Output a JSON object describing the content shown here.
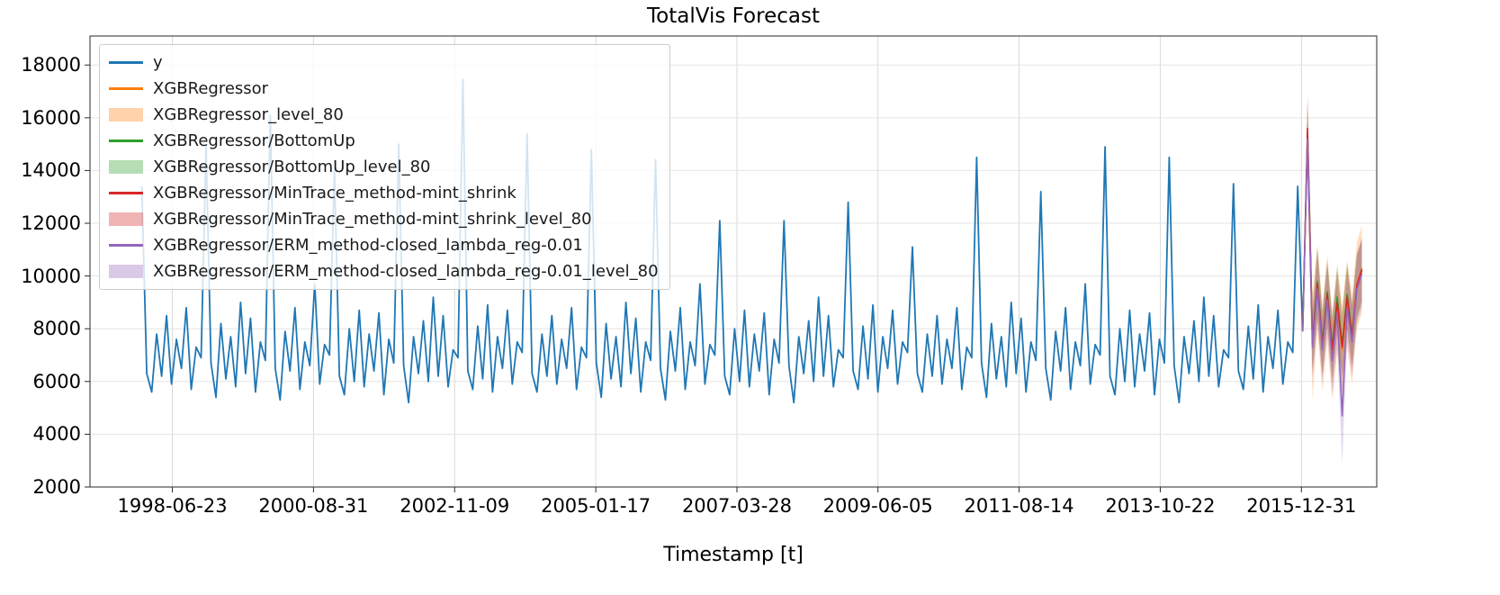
{
  "chart_data": {
    "type": "line",
    "title": "TotalVis Forecast",
    "xlabel": "Timestamp [t]",
    "ylabel": "",
    "grid": true,
    "legend_position": "upper left",
    "xlim": [
      -42,
      1000
    ],
    "ylim": [
      2000,
      19100
    ],
    "yticks": [
      2000,
      4000,
      6000,
      8000,
      10000,
      12000,
      14000,
      16000,
      18000
    ],
    "xticks": [
      {
        "label": "1998-06-23",
        "x": 24.7
      },
      {
        "label": "2000-08-31",
        "x": 139.0
      },
      {
        "label": "2002-11-09",
        "x": 253.3
      },
      {
        "label": "2005-01-17",
        "x": 367.6
      },
      {
        "label": "2007-03-28",
        "x": 481.9
      },
      {
        "label": "2009-06-05",
        "x": 596.1
      },
      {
        "label": "2011-08-14",
        "x": 710.4
      },
      {
        "label": "2013-10-22",
        "x": 824.7
      },
      {
        "label": "2015-12-31",
        "x": 939.0
      }
    ],
    "x_unit": "weeks since 1998-01-01",
    "series": [
      {
        "name": "y",
        "color": "#1f77b4",
        "x_start": 0,
        "x_step": 4,
        "values": [
          13400,
          6300,
          5600,
          7800,
          6200,
          8500,
          5900,
          7600,
          6500,
          8800,
          5700,
          7300,
          6900,
          14900,
          6700,
          5400,
          8200,
          6100,
          7700,
          5800,
          9000,
          6300,
          8400,
          5600,
          7500,
          6800,
          16100,
          6500,
          5300,
          7900,
          6400,
          8800,
          5700,
          7500,
          6600,
          9700,
          5900,
          7400,
          7000,
          14000,
          6200,
          5500,
          8000,
          6000,
          8700,
          5800,
          7800,
          6400,
          8600,
          5500,
          7600,
          6700,
          15000,
          6600,
          5200,
          7700,
          6300,
          8300,
          6000,
          9200,
          6200,
          8500,
          5800,
          7200,
          6900,
          17450,
          6400,
          5700,
          8100,
          6100,
          8900,
          5600,
          7700,
          6500,
          8700,
          5900,
          7500,
          7100,
          15400,
          6300,
          5600,
          7800,
          6200,
          8500,
          5900,
          7600,
          6500,
          8800,
          5700,
          7300,
          6900,
          14800,
          6700,
          5400,
          8200,
          6100,
          7700,
          5800,
          9000,
          6300,
          8400,
          5600,
          7500,
          6800,
          14400,
          6500,
          5300,
          7900,
          6400,
          8800,
          5700,
          7500,
          6600,
          9700,
          5900,
          7400,
          7000,
          12100,
          6200,
          5500,
          8000,
          6000,
          8700,
          5800,
          7800,
          6400,
          8600,
          5500,
          7600,
          6700,
          12100,
          6600,
          5200,
          7700,
          6300,
          8300,
          6000,
          9200,
          6200,
          8500,
          5800,
          7200,
          6900,
          12800,
          6400,
          5700,
          8100,
          6100,
          8900,
          5600,
          7700,
          6500,
          8700,
          5900,
          7500,
          7100,
          11100,
          6300,
          5600,
          7800,
          6200,
          8500,
          5900,
          7600,
          6500,
          8800,
          5700,
          7300,
          6900,
          14500,
          6700,
          5400,
          8200,
          6100,
          7700,
          5800,
          9000,
          6300,
          8400,
          5600,
          7500,
          6800,
          13200,
          6500,
          5300,
          7900,
          6400,
          8800,
          5700,
          7500,
          6600,
          9700,
          5900,
          7400,
          7000,
          14900,
          6200,
          5500,
          8000,
          6000,
          8700,
          5800,
          7800,
          6400,
          8600,
          5500,
          7600,
          6700,
          14500,
          6600,
          5200,
          7700,
          6300,
          8300,
          6000,
          9200,
          6200,
          8500,
          5800,
          7200,
          6900,
          13500,
          6400,
          5700,
          8100,
          6100,
          8900,
          5600,
          7700,
          6500,
          8700,
          5900,
          7500,
          7100,
          13400,
          7900
        ]
      },
      {
        "name": "XGBRegressor",
        "color": "#ff7f0e",
        "x_start": 940,
        "x_step": 4,
        "values": [
          7900,
          15300,
          7400,
          9600,
          7300,
          9200,
          7000,
          8800,
          7200,
          9000,
          7600,
          9700,
          10300
        ],
        "band": {
          "name": "XGBRegressor_level_80",
          "alpha": 0.25,
          "lower": [
            7900,
            13800,
            5300,
            7900,
            5600,
            7500,
            5300,
            7100,
            5500,
            7300,
            5900,
            8000,
            8600
          ],
          "upper": [
            7900,
            16800,
            9400,
            11200,
            9000,
            10800,
            8700,
            10400,
            8900,
            10600,
            9300,
            11300,
            11900
          ]
        }
      },
      {
        "name": "XGBRegressor/BottomUp",
        "color": "#2ca02c",
        "x_start": 940,
        "x_step": 4,
        "values": [
          7900,
          15400,
          7600,
          9800,
          7500,
          9400,
          7300,
          9200,
          7400,
          9300,
          7800,
          9600,
          10200
        ],
        "band": {
          "name": "XGBRegressor/BottomUp_level_80",
          "alpha": 0.25,
          "lower": [
            7900,
            14100,
            6400,
            8500,
            6300,
            8200,
            6100,
            8000,
            6200,
            8100,
            6600,
            8400,
            9000
          ],
          "upper": [
            7900,
            16700,
            8800,
            11100,
            8700,
            10600,
            8500,
            10400,
            8600,
            10500,
            9000,
            10800,
            11400
          ]
        }
      },
      {
        "name": "XGBRegressor/MinTrace_method-mint_shrink",
        "color": "#d62728",
        "x_start": 940,
        "x_step": 4,
        "values": [
          7900,
          15600,
          7500,
          9700,
          7400,
          9300,
          7200,
          9000,
          7300,
          9200,
          7700,
          9650,
          10250
        ],
        "band": {
          "name": "XGBRegressor/MinTrace_method-mint_shrink_level_80",
          "alpha": 0.25,
          "lower": [
            7900,
            14300,
            6300,
            8400,
            6200,
            8100,
            6000,
            7800,
            6100,
            8000,
            6500,
            8450,
            9050
          ],
          "upper": [
            7900,
            16900,
            8700,
            11000,
            8600,
            10500,
            8400,
            10200,
            8500,
            10400,
            8900,
            10850,
            11450
          ]
        }
      },
      {
        "name": "XGBRegressor/ERM_method-closed_lambda_reg-0.01",
        "color": "#9467bd",
        "x_start": 940,
        "x_step": 4,
        "values": [
          7900,
          15200,
          7300,
          9500,
          7200,
          9100,
          6800,
          8600,
          4700,
          8800,
          7500,
          9500,
          10100
        ],
        "band": {
          "name": "XGBRegressor/ERM_method-closed_lambda_reg-0.01_level_80",
          "alpha": 0.25,
          "lower": [
            7900,
            13900,
            6100,
            8200,
            6000,
            7800,
            5500,
            7300,
            2900,
            7500,
            6200,
            8200,
            8800
          ],
          "upper": [
            7900,
            16500,
            8500,
            10800,
            8400,
            10400,
            8100,
            9900,
            6500,
            10100,
            8800,
            10800,
            11400
          ]
        }
      }
    ]
  }
}
